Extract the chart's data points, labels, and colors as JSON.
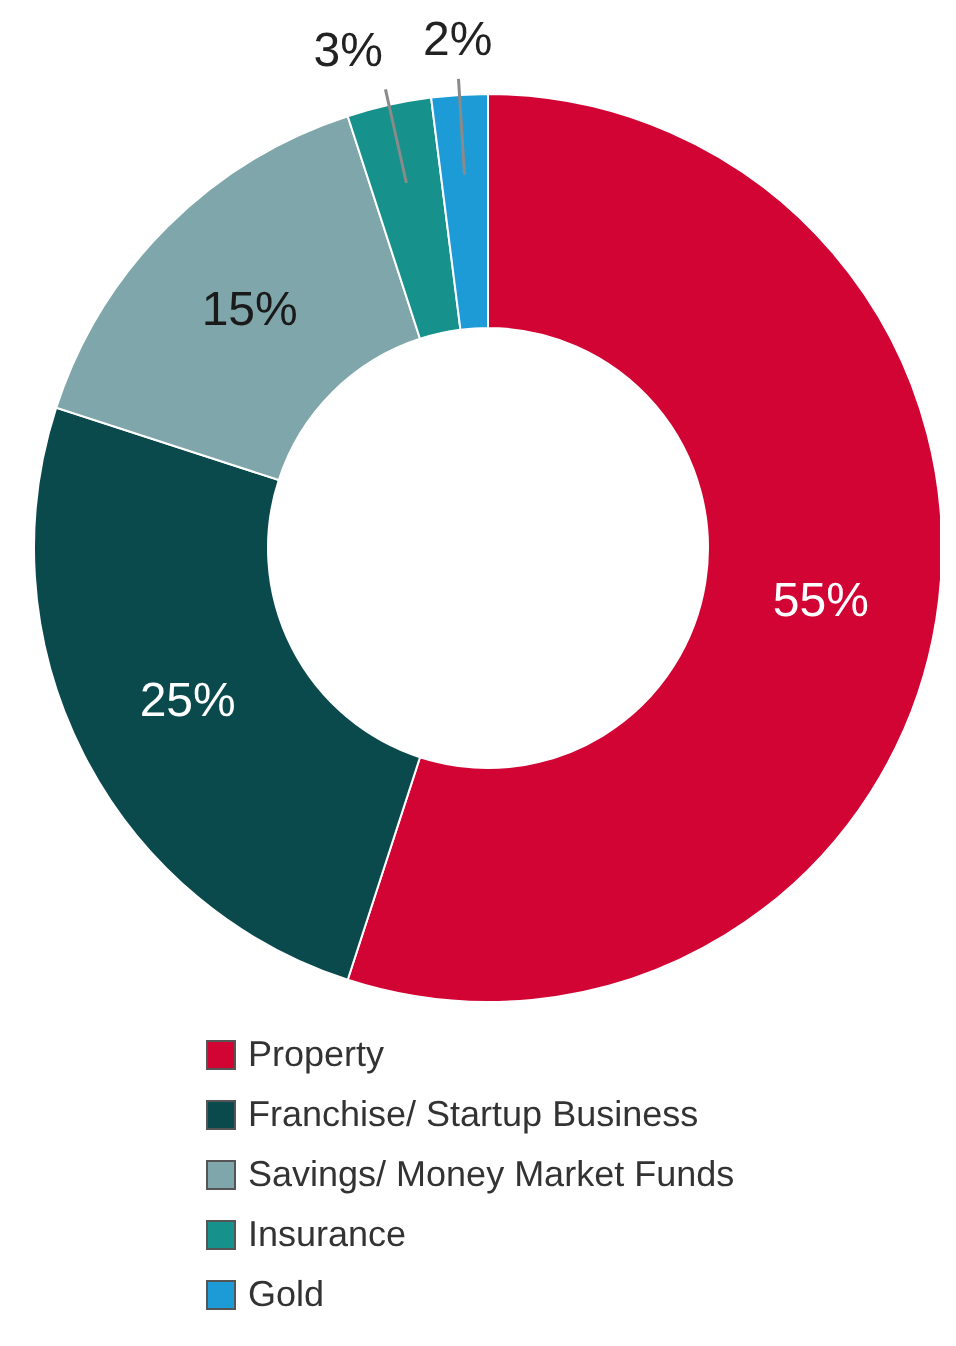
{
  "chart_data": {
    "type": "donut",
    "categories": [
      "Property",
      "Franchise/ Startup Business",
      "Savings/ Money Market Funds",
      "Insurance",
      "Gold"
    ],
    "values": [
      55,
      25,
      15,
      3,
      2
    ],
    "value_labels": [
      "55%",
      "25%",
      "15%",
      "3%",
      "2%"
    ],
    "colors": [
      "#d10434",
      "#0b4a4c",
      "#7fa7ab",
      "#16918b",
      "#1d9bd7"
    ],
    "legend": "bottom"
  }
}
